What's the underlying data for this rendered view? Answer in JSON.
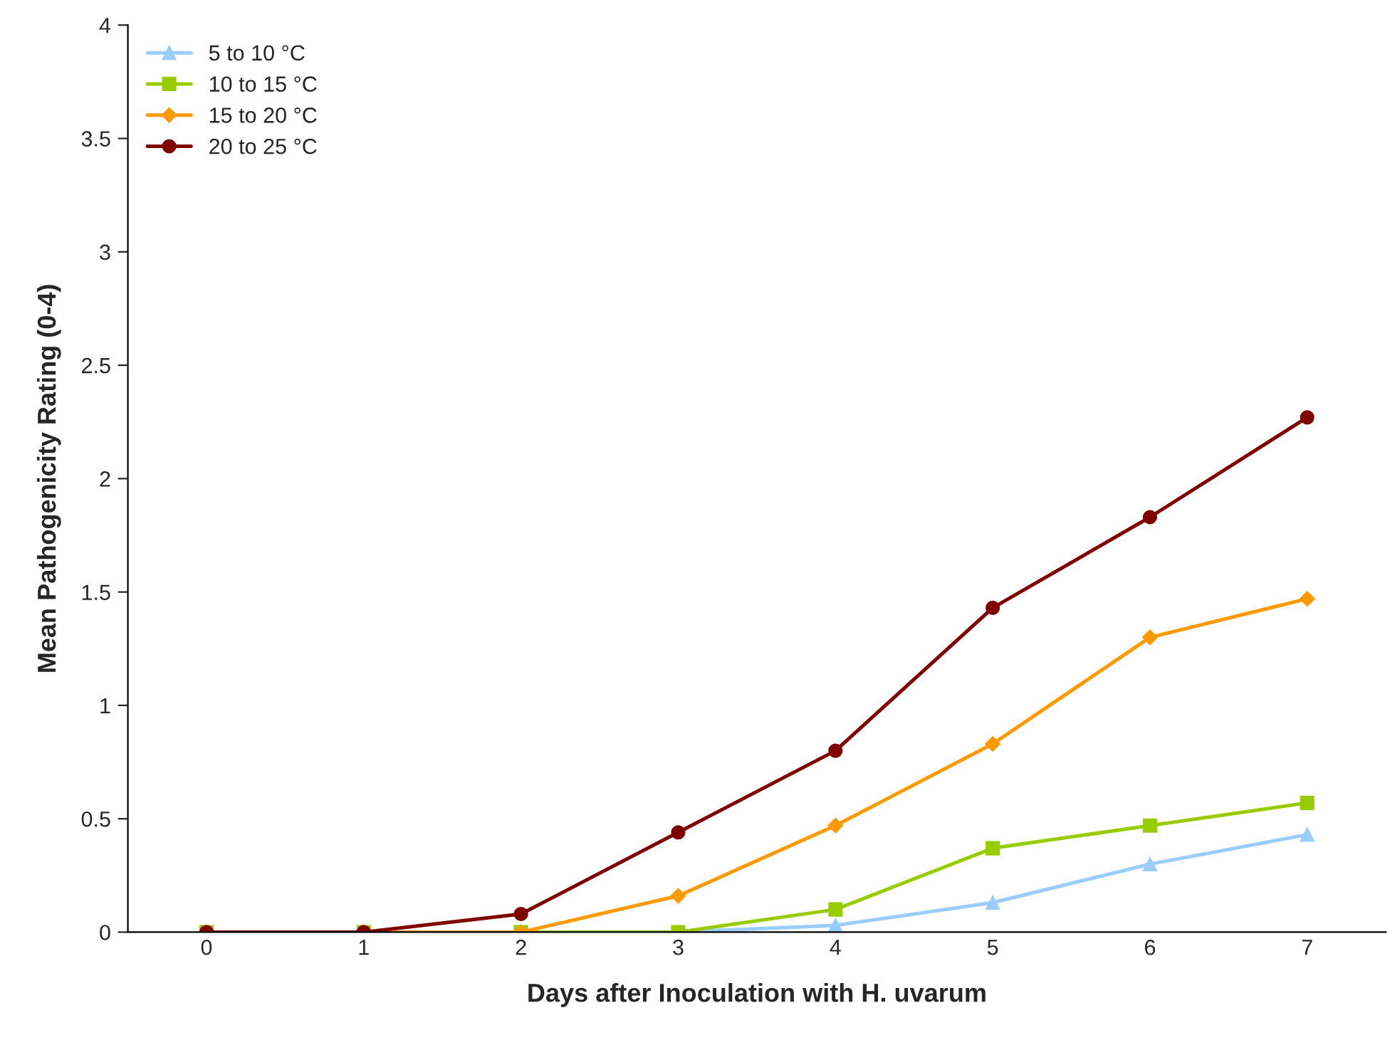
{
  "chart_data": {
    "type": "line",
    "xlabel": "Days after Inoculation with H. uvarum",
    "ylabel": "Mean Pathogenicity Rating (0-4)",
    "categories": [
      "0",
      "1",
      "2",
      "3",
      "4",
      "5",
      "6",
      "7"
    ],
    "series": [
      {
        "name": "5 to 10 °C",
        "color": "#99ccff",
        "marker": "triangle",
        "values": [
          null,
          null,
          0,
          0,
          0.03,
          0.13,
          0.3,
          0.43
        ]
      },
      {
        "name": "10 to 15 °C",
        "color": "#99cc00",
        "marker": "square",
        "values": [
          0,
          0,
          0,
          0,
          0.1,
          0.37,
          0.47,
          0.57
        ]
      },
      {
        "name": "15 to 20 °C",
        "color": "#ff9900",
        "marker": "diamond",
        "values": [
          0,
          0,
          0,
          0.16,
          0.47,
          0.83,
          1.3,
          1.47
        ]
      },
      {
        "name": "20 to 25 °C",
        "color": "#800000",
        "marker": "circle",
        "values": [
          0,
          0,
          0.08,
          0.44,
          0.8,
          1.43,
          1.83,
          2.27
        ]
      }
    ],
    "ylim": [
      0,
      4
    ],
    "yticks": [
      0,
      0.5,
      1,
      1.5,
      2,
      2.5,
      3,
      3.5,
      4
    ],
    "grid": false,
    "legend": "top left",
    "line_style": "solid"
  }
}
